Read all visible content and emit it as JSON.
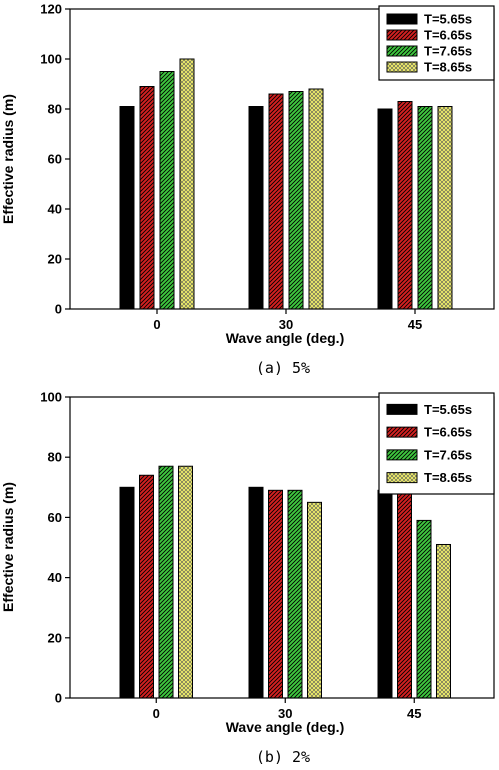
{
  "series_styles": [
    {
      "fill": "#000000",
      "pattern": "solid"
    },
    {
      "fill": "#d42020",
      "pattern": "diag-left"
    },
    {
      "fill": "#3ec83e",
      "pattern": "diag-left"
    },
    {
      "fill": "#f0ef6a",
      "pattern": "crosshatch"
    }
  ],
  "chart_data": [
    {
      "type": "bar",
      "caption": "(a) 5%",
      "xlabel": "Wave angle (deg.)",
      "ylabel": "Effective radius (m)",
      "categories": [
        "0",
        "30",
        "45"
      ],
      "ylim": [
        0,
        120
      ],
      "yticks": [
        0,
        20,
        40,
        60,
        80,
        100,
        120
      ],
      "legend_position": "top-right",
      "series": [
        {
          "name": "T=5.65s",
          "values": [
            81,
            81,
            80
          ]
        },
        {
          "name": "T=6.65s",
          "values": [
            89,
            86,
            83
          ]
        },
        {
          "name": "T=7.65s",
          "values": [
            95,
            87,
            81
          ]
        },
        {
          "name": "T=8.65s",
          "values": [
            100,
            88,
            81
          ]
        }
      ]
    },
    {
      "type": "bar",
      "caption": "(b) 2%",
      "xlabel": "Wave angle (deg.)",
      "ylabel": "Effective radius (m)",
      "categories": [
        "0",
        "30",
        "45"
      ],
      "ylim": [
        0,
        100
      ],
      "yticks": [
        0,
        20,
        40,
        60,
        80,
        100
      ],
      "legend_position": "top-right",
      "series": [
        {
          "name": "T=5.65s",
          "values": [
            70,
            70,
            69
          ]
        },
        {
          "name": "T=6.65s",
          "values": [
            74,
            69,
            68
          ]
        },
        {
          "name": "T=7.65s",
          "values": [
            77,
            69,
            59
          ]
        },
        {
          "name": "T=8.65s",
          "values": [
            77,
            65,
            51
          ]
        }
      ]
    }
  ]
}
